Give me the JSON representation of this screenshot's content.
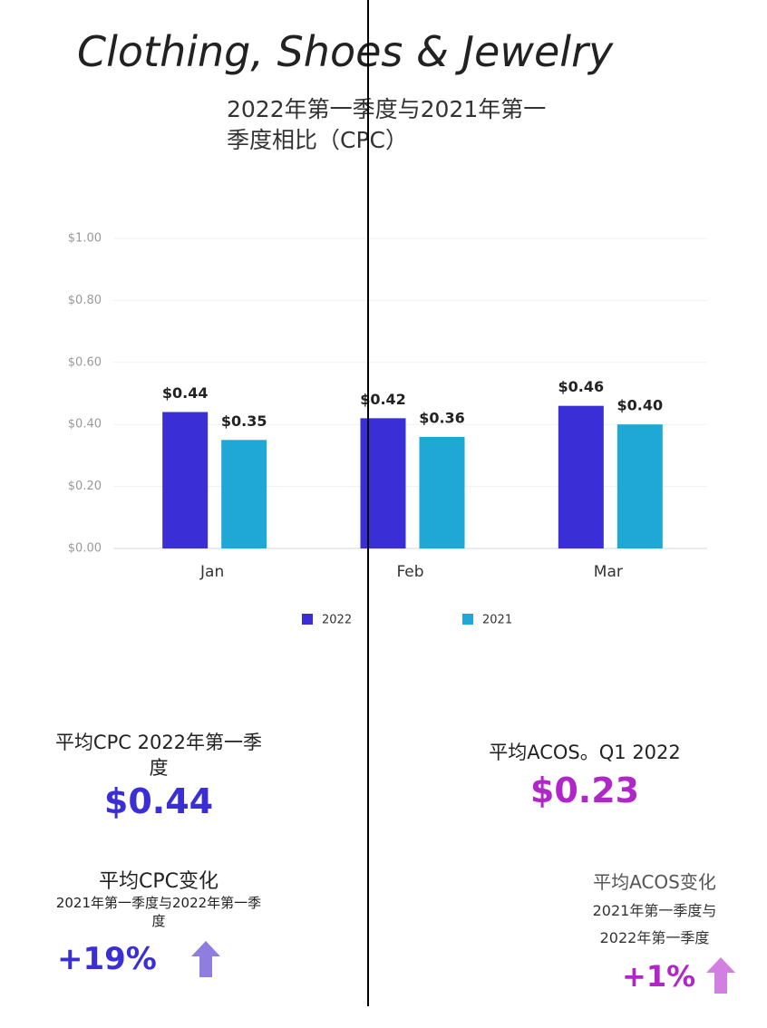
{
  "title": "Clothing, Shoes & Jewelry",
  "chart_data": {
    "type": "bar",
    "title": "2022年第一季度与2021年第一季度相比（CPC）",
    "categories": [
      "Jan",
      "Feb",
      "Mar"
    ],
    "series": [
      {
        "name": "2022",
        "color": "#3a2fd6",
        "values": [
          0.44,
          0.42,
          0.46
        ],
        "value_labels": [
          "$0.44",
          "$0.42",
          "$0.46"
        ]
      },
      {
        "name": "2021",
        "color": "#1fa8d6",
        "values": [
          0.35,
          0.36,
          0.4
        ],
        "value_labels": [
          "$0.35",
          "$0.36",
          "$0.40"
        ]
      }
    ],
    "ylim": [
      0,
      1
    ],
    "yticks": [
      {
        "value": 0,
        "label": "$0.00"
      },
      {
        "value": 0.2,
        "label": "$0.20"
      },
      {
        "value": 0.4,
        "label": "$0.40"
      },
      {
        "value": 0.6,
        "label": "$0.60"
      },
      {
        "value": 0.8,
        "label": "$0.80"
      },
      {
        "value": 1,
        "label": "$1.00"
      }
    ],
    "grid": true,
    "legend": "bottom"
  },
  "stats": [
    {
      "label": "平均CPC 2022年第一季度",
      "value": "$0.44"
    },
    {
      "label": "平均ACOS。Q1 2022",
      "value": "$0.23"
    },
    {
      "label": "平均CPC变化",
      "sublabel": "2021年第一季度与2022年第一季度",
      "value": "+19%"
    },
    {
      "label": "平均ACOS变化",
      "sublabel": "2021年第一季度与2022年第一季度",
      "value": "+1%"
    }
  ]
}
